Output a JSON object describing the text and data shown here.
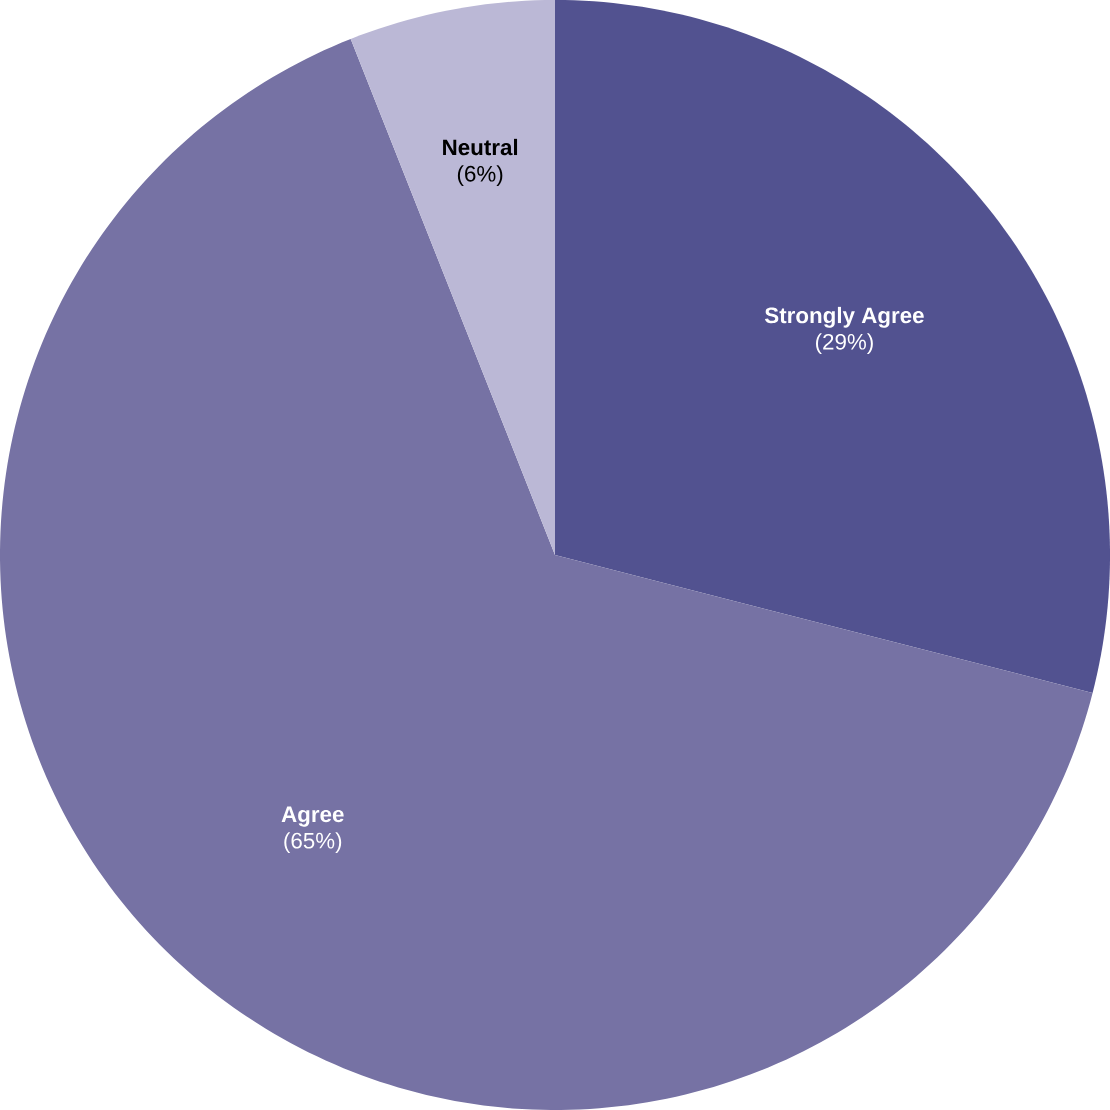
{
  "chart_data": {
    "type": "pie",
    "categories": [
      "Strongly Agree",
      "Agree",
      "Neutral"
    ],
    "values": [
      29,
      65,
      6
    ],
    "value_labels": [
      "(29%)",
      "(65%)",
      "(6%)"
    ],
    "colors": [
      "#525290",
      "#7672a4",
      "#bbb8d6"
    ]
  }
}
